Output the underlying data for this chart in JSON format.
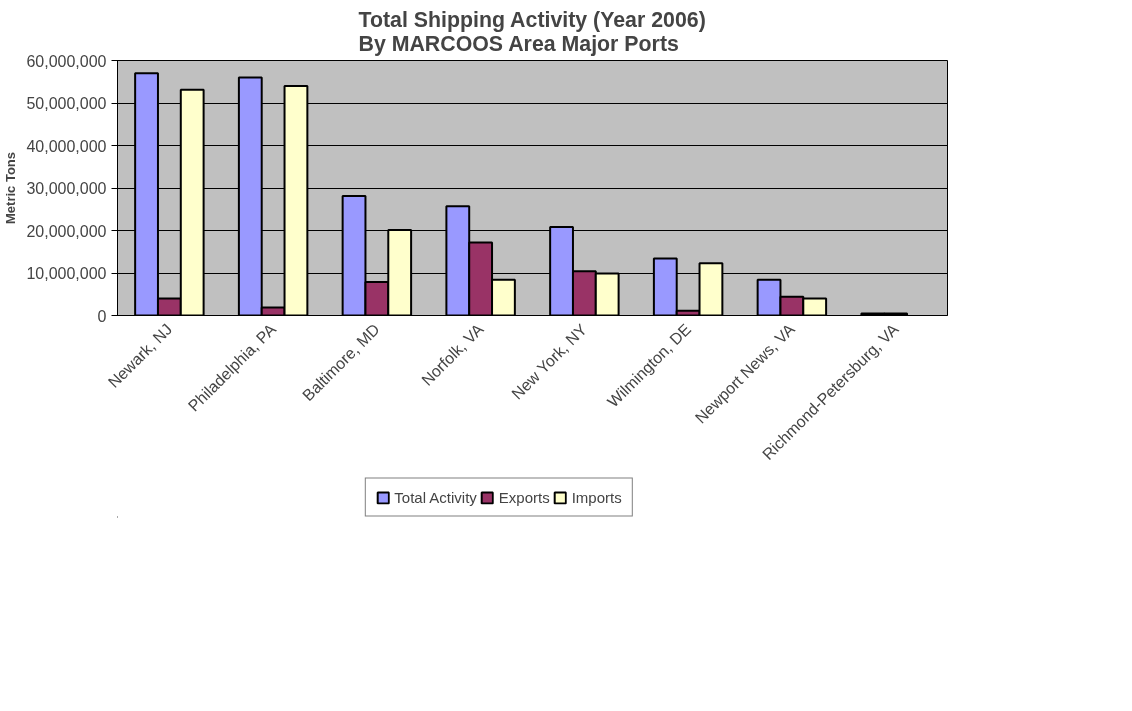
{
  "chart_data": {
    "type": "bar",
    "title": "Total Shipping Activity (Year 2006)\nBy MARCOOS Area Major Ports",
    "ylabel": "Metric Tons",
    "categories": [
      "Newark, NJ",
      "Philadelphia, PA",
      "Baltimore, MD",
      "Norfolk, VA",
      "New York, NY",
      "Wilmington, DE",
      "Newport News, VA",
      "Richmond-Petersburg, VA"
    ],
    "series": [
      {
        "name": "Total Activity",
        "color": "#9999ff",
        "values": [
          57000000,
          56000000,
          28100000,
          25700000,
          20800000,
          13400000,
          8400000,
          500000
        ]
      },
      {
        "name": "Exports",
        "color": "#993366",
        "values": [
          4000000,
          1900000,
          7900000,
          17200000,
          10400000,
          1100000,
          4400000,
          500000
        ]
      },
      {
        "name": "Imports",
        "color": "#ffffcc",
        "values": [
          53100000,
          54000000,
          20100000,
          8400000,
          9900000,
          12300000,
          4000000,
          null
        ]
      }
    ],
    "ylim": [
      0,
      60000000
    ],
    "yticks": [
      {
        "value": 0,
        "label": "0"
      },
      {
        "value": 10000000,
        "label": "10,000,000"
      },
      {
        "value": 20000000,
        "label": "20,000,000"
      },
      {
        "value": 30000000,
        "label": "30,000,000"
      },
      {
        "value": 40000000,
        "label": "40,000,000"
      },
      {
        "value": 50000000,
        "label": "50,000,000"
      },
      {
        "value": 60000000,
        "label": "60,000,000"
      }
    ],
    "grid": "y",
    "legend": "bottom"
  }
}
